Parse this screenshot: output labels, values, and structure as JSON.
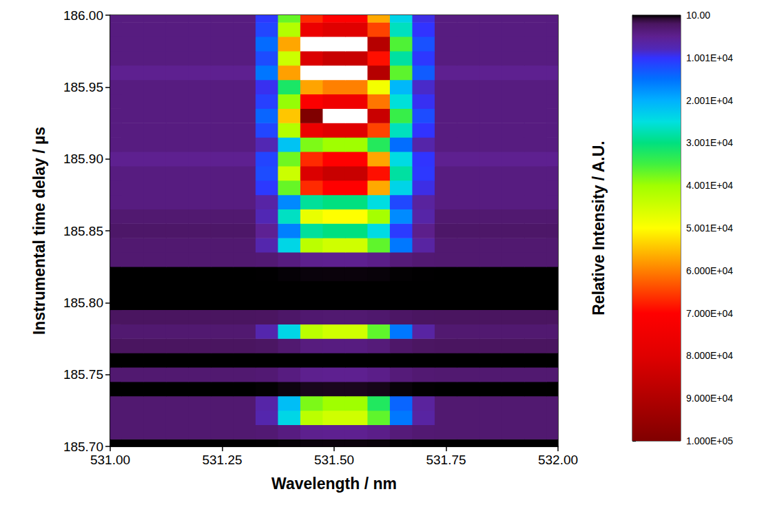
{
  "chart_data": {
    "type": "heatmap",
    "xlabel": "Wavelength / nm",
    "ylabel": "Instrumental time delay / µs",
    "xlim": [
      531,
      532
    ],
    "xticks": [
      {
        "value": 531,
        "label": "531.00"
      },
      531.25,
      {
        "value": 531.5,
        "label": "531.50"
      },
      531.75,
      {
        "value": 532,
        "label": "532.00"
      }
    ],
    "ylim": [
      185.7,
      186
    ],
    "yticks": [
      {
        "value": 185.7,
        "label": "185.70"
      },
      185.75,
      {
        "value": 185.8,
        "label": "185.80"
      },
      185.85,
      {
        "value": 185.9,
        "label": "185.90"
      },
      185.95,
      {
        "value": 186,
        "label": "186.00"
      }
    ],
    "grid": false,
    "x": [
      531.0,
      531.05,
      531.1,
      531.15,
      531.2,
      531.25,
      531.3,
      531.35,
      531.4,
      531.45,
      531.5,
      531.55,
      531.6,
      531.65,
      531.7,
      531.75,
      531.8,
      531.85,
      531.9,
      531.95,
      532.0
    ],
    "y": [
      185.7,
      185.71,
      185.72,
      185.73,
      185.74,
      185.75,
      185.76,
      185.77,
      185.78,
      185.79,
      185.8,
      185.81,
      185.82,
      185.83,
      185.84,
      185.85,
      185.86,
      185.87,
      185.88,
      185.89,
      185.9,
      185.91,
      185.92,
      185.93,
      185.94,
      185.95,
      185.96,
      185.97,
      185.98,
      185.99,
      186.0
    ],
    "z": [
      [
        10,
        10,
        10,
        10,
        10,
        10,
        10,
        29,
        105,
        190,
        200,
        200,
        162,
        67,
        25,
        10,
        10,
        10,
        10,
        10,
        10
      ],
      [
        3000,
        3000,
        3000,
        3000,
        3000,
        3000,
        3000,
        3200,
        4000,
        4900,
        5000,
        5000,
        4600,
        3600,
        3160,
        3000,
        3000,
        3000,
        3000,
        3000,
        3000
      ],
      [
        3000,
        3000,
        3000,
        3000,
        3000,
        3000,
        3000,
        7200,
        24000,
        42900,
        45000,
        45000,
        36600,
        15600,
        6360,
        3000,
        3000,
        3000,
        3000,
        3000,
        3000
      ],
      [
        3000,
        3000,
        3000,
        3000,
        3000,
        3000,
        3000,
        6700,
        21500,
        38150,
        40000,
        40000,
        32600,
        14100,
        5960,
        3000,
        3000,
        3000,
        3000,
        3000,
        3000
      ],
      [
        10,
        10,
        10,
        10,
        10,
        10,
        10,
        59,
        255,
        475,
        500,
        500,
        402,
        157,
        49,
        10,
        10,
        10,
        10,
        10,
        10
      ],
      [
        3000,
        3000,
        3000,
        3000,
        3000,
        3000,
        3000,
        3200,
        4000,
        4900,
        5000,
        5000,
        4600,
        3600,
        3160,
        3000,
        3000,
        3000,
        3000,
        3000,
        3000
      ],
      [
        10,
        10,
        10,
        10,
        10,
        10,
        10,
        10,
        10,
        10,
        10,
        10,
        10,
        10,
        10,
        10,
        10,
        10,
        10,
        10,
        10
      ],
      [
        2000,
        2000,
        2000,
        2000,
        2000,
        2000,
        2000,
        2200,
        3000,
        3900,
        4000,
        4000,
        3600,
        2600,
        2160,
        2000,
        2000,
        2000,
        2000,
        2000,
        2000
      ],
      [
        3000,
        3000,
        3000,
        3000,
        3000,
        3000,
        3000,
        7200,
        24000,
        42900,
        45000,
        45000,
        36600,
        15600,
        6360,
        3000,
        3000,
        3000,
        3000,
        3000,
        3000
      ],
      [
        2000,
        2000,
        2000,
        2000,
        2000,
        2000,
        2000,
        2100,
        2500,
        2950,
        3000,
        3000,
        2800,
        2300,
        2080,
        2000,
        2000,
        2000,
        2000,
        2000,
        2000
      ],
      [
        10,
        10,
        10,
        10,
        10,
        10,
        10,
        10,
        10,
        10,
        10,
        10,
        10,
        10,
        10,
        10,
        10,
        10,
        10,
        10,
        10
      ],
      [
        10,
        10,
        10,
        10,
        10,
        10,
        10,
        10,
        10,
        10,
        10,
        10,
        10,
        10,
        10,
        10,
        10,
        10,
        10,
        10,
        10
      ],
      [
        10,
        10,
        10,
        10,
        10,
        10,
        10,
        29,
        105,
        190,
        200,
        200,
        162,
        67,
        25,
        10,
        10,
        10,
        10,
        10,
        10
      ],
      [
        3000,
        3000,
        3000,
        3000,
        3000,
        3000,
        3000,
        3200,
        4000,
        4900,
        5000,
        5000,
        4600,
        3600,
        3160,
        3000,
        3000,
        3000,
        3000,
        3000,
        3000
      ],
      [
        3000,
        3000,
        3000,
        3000,
        3000,
        3000,
        3000,
        7200,
        24000,
        42900,
        45000,
        45000,
        36600,
        15600,
        6360,
        3000,
        3000,
        3000,
        3000,
        3000,
        3000
      ],
      [
        2500,
        2500,
        2500,
        2500,
        2500,
        2500,
        2500,
        5250,
        16250,
        28625,
        30000,
        30000,
        24500,
        10750,
        4700,
        2500,
        2500,
        2500,
        2500,
        2500,
        2500
      ],
      [
        3000,
        3000,
        3000,
        3000,
        3000,
        3000,
        3000,
        7700,
        26500,
        47650,
        50000,
        50000,
        40600,
        17100,
        6760,
        3000,
        3000,
        3000,
        3000,
        3000,
        3000
      ],
      [
        4000,
        4000,
        4000,
        4000,
        4000,
        4000,
        4000,
        6600,
        17000,
        28700,
        30000,
        30000,
        24800,
        11800,
        6080,
        4000,
        4000,
        4000,
        4000,
        4000,
        4000
      ],
      [
        4000,
        4000,
        4000,
        4000,
        4000,
        4000,
        4000,
        10600,
        37000,
        66700,
        70000,
        70000,
        56800,
        23800,
        9280,
        4000,
        4000,
        4000,
        4000,
        4000,
        4000
      ],
      [
        4000,
        4000,
        4000,
        4000,
        4000,
        4000,
        4000,
        12100,
        44500,
        80950,
        85000,
        85000,
        68800,
        28300,
        10480,
        4000,
        4000,
        4000,
        4000,
        4000,
        4000
      ],
      [
        5000,
        5000,
        5000,
        5000,
        5000,
        5000,
        5000,
        11500,
        37500,
        66750,
        70000,
        70000,
        57000,
        24500,
        10200,
        5000,
        5000,
        5000,
        5000,
        5000,
        5000
      ],
      [
        4000,
        4000,
        4000,
        4000,
        4000,
        4000,
        4000,
        7600,
        22000,
        38200,
        40000,
        40000,
        32800,
        14800,
        6880,
        4000,
        4000,
        4000,
        4000,
        4000,
        4000
      ],
      [
        4000,
        4000,
        4000,
        4000,
        4000,
        4000,
        4000,
        11600,
        42000,
        76200,
        80000,
        80000,
        64800,
        26800,
        10080,
        4000,
        4000,
        4000,
        4000,
        4000,
        4000
      ],
      [
        4000,
        4000,
        4000,
        4000,
        4000,
        4000,
        4000,
        14100,
        54500,
        99950,
        105000,
        105000,
        84800,
        34300,
        12080,
        4000,
        4000,
        4000,
        4000,
        4000,
        4000
      ],
      [
        4000,
        4000,
        4000,
        4000,
        4000,
        4000,
        4000,
        11100,
        39500,
        71450,
        75000,
        75000,
        60800,
        25300,
        9680,
        4000,
        4000,
        4000,
        4000,
        4000,
        4000
      ],
      [
        4000,
        4000,
        4000,
        4000,
        4000,
        4000,
        4000,
        9600,
        32000,
        57200,
        60000,
        60000,
        48800,
        20800,
        8480,
        4000,
        4000,
        4000,
        4000,
        4000,
        4000
      ],
      [
        5000,
        5000,
        5000,
        5000,
        5000,
        5000,
        5000,
        15500,
        57500,
        104750,
        110000,
        110000,
        89000,
        36500,
        13400,
        5000,
        5000,
        5000,
        5000,
        5000,
        5000
      ],
      [
        4000,
        4000,
        4000,
        4000,
        4000,
        4000,
        4000,
        12100,
        44500,
        80950,
        85000,
        85000,
        68800,
        28300,
        10480,
        4000,
        4000,
        4000,
        4000,
        4000,
        4000
      ],
      [
        4000,
        4000,
        4000,
        4000,
        4000,
        4000,
        4000,
        14600,
        57000,
        104700,
        110000,
        110000,
        88800,
        35800,
        12480,
        4000,
        4000,
        4000,
        4000,
        4000,
        4000
      ],
      [
        4000,
        4000,
        4000,
        4000,
        4000,
        4000,
        4000,
        11600,
        42000,
        76200,
        80000,
        80000,
        64800,
        26800,
        10080,
        4000,
        4000,
        4000,
        4000,
        4000,
        4000
      ],
      [
        4000,
        4000,
        4000,
        4000,
        4000,
        4000,
        4000,
        10600,
        37000,
        66700,
        70000,
        70000,
        56800,
        23800,
        9280,
        4000,
        4000,
        4000,
        4000,
        4000,
        4000
      ]
    ],
    "colorbar": {
      "label": "Relative Intensity / A.U.",
      "range": [
        10,
        100000
      ],
      "ticks": [
        {
          "value": 10,
          "label": "10.00"
        },
        {
          "value": 10009,
          "label": "1.001E+04"
        },
        {
          "value": 20008,
          "label": "2.001E+04"
        },
        {
          "value": 30007,
          "label": "3.001E+04"
        },
        {
          "value": 40006,
          "label": "4.001E+04"
        },
        {
          "value": 50005,
          "label": "5.001E+04"
        },
        {
          "value": 60004,
          "label": "6.000E+04"
        },
        {
          "value": 70003,
          "label": "7.000E+04"
        },
        {
          "value": 80002,
          "label": "8.000E+04"
        },
        {
          "value": 90001,
          "label": "9.000E+04"
        },
        {
          "value": 100000,
          "label": "1.000E+05"
        }
      ]
    }
  }
}
